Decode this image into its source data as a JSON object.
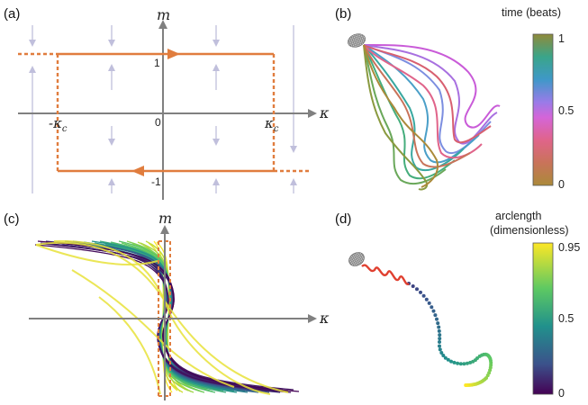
{
  "figure": {
    "panels": {
      "a": {
        "label": "(a)",
        "y_axis": "m",
        "x_axis": "κ",
        "ticks": {
          "m_pos": "1",
          "m_neg": "-1",
          "origin": "0"
        },
        "kc_neg": "-κ",
        "kc_pos": "κ",
        "kc_sub": "c",
        "colors": {
          "loop": "#e07d3e",
          "arrows": "#c0bfdc",
          "axis": "#808080"
        }
      },
      "b": {
        "label": "(b)",
        "colorbar": {
          "title": "time (beats)",
          "max": "1",
          "mid": "0.5",
          "min": "0"
        }
      },
      "c": {
        "label": "(c)",
        "y_axis": "m",
        "x_axis": "κ"
      },
      "d": {
        "label": "(d)",
        "colorbar": {
          "title_line1": "arclength",
          "title_line2": "(dimensionless)",
          "max": "0.95",
          "mid": "0.5",
          "min": "0"
        }
      }
    }
  }
}
